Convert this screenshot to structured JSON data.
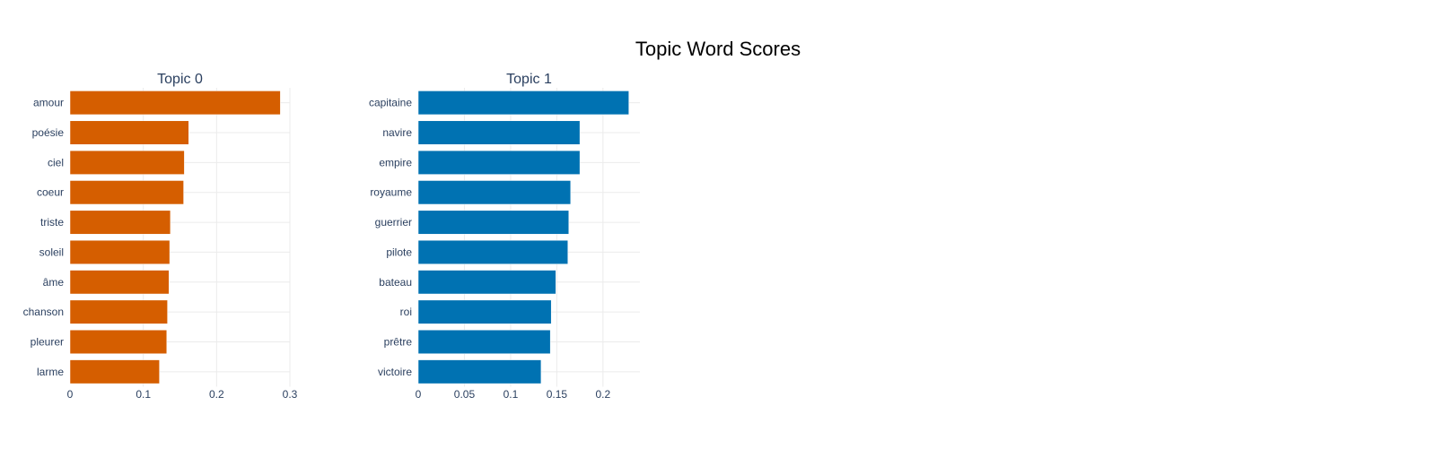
{
  "title": "Topic Word Scores",
  "chart_data": [
    {
      "type": "bar",
      "orientation": "horizontal",
      "title": "Topic 0",
      "color": "#D55E00",
      "xlim": [
        0,
        0.3
      ],
      "xticks": [
        0,
        0.1,
        0.2,
        0.3
      ],
      "xticklabels": [
        "0",
        "0.1",
        "0.2",
        "0.3"
      ],
      "grid": true,
      "categories": [
        "amour",
        "poésie",
        "ciel",
        "coeur",
        "triste",
        "soleil",
        "âme",
        "chanson",
        "pleurer",
        "larme"
      ],
      "values": [
        0.287,
        0.162,
        0.156,
        0.155,
        0.137,
        0.136,
        0.135,
        0.133,
        0.132,
        0.122
      ]
    },
    {
      "type": "bar",
      "orientation": "horizontal",
      "title": "Topic 1",
      "color": "#0072B2",
      "xlim": [
        0,
        0.24
      ],
      "xticks": [
        0,
        0.05,
        0.1,
        0.15,
        0.2
      ],
      "xticklabels": [
        "0",
        "0.05",
        "0.1",
        "0.15",
        "0.2"
      ],
      "grid": true,
      "categories": [
        "capitaine",
        "navire",
        "empire",
        "royaume",
        "guerrier",
        "pilote",
        "bateau",
        "roi",
        "prêtre",
        "victoire"
      ],
      "values": [
        0.228,
        0.175,
        0.175,
        0.165,
        0.163,
        0.162,
        0.149,
        0.144,
        0.143,
        0.133
      ]
    }
  ]
}
